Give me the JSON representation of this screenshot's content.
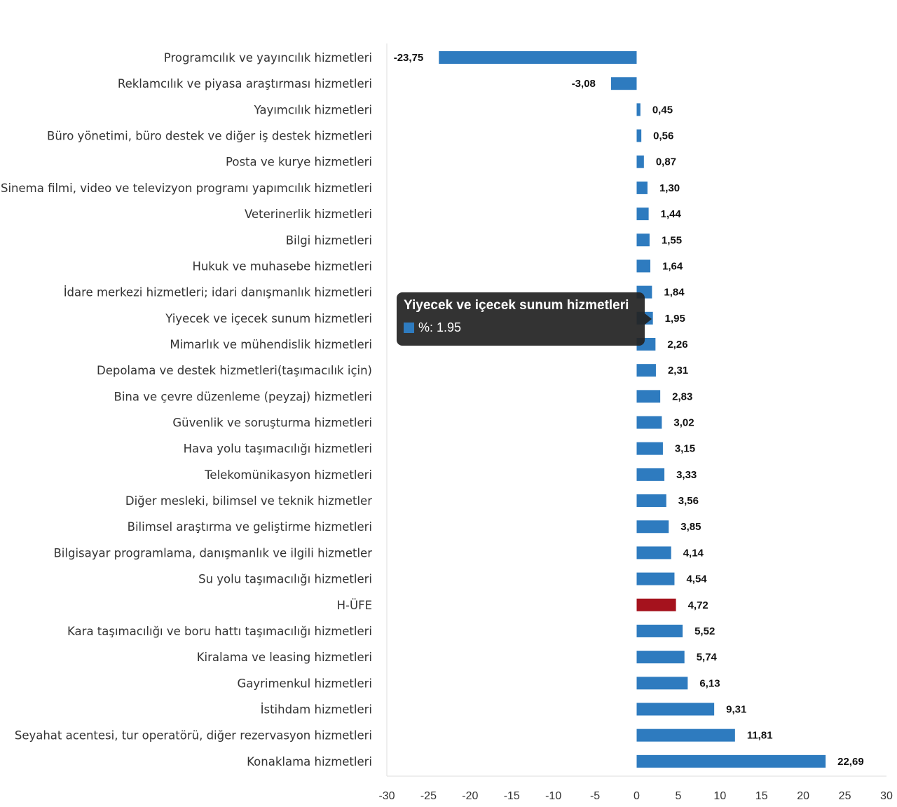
{
  "chart_data": {
    "type": "bar",
    "orientation": "horizontal",
    "categories": [
      "Programcılık ve yayıncılık hizmetleri",
      "Reklamcılık ve piyasa araştırması hizmetleri",
      "Yayımcılık hizmetleri",
      "Büro yönetimi, büro destek ve diğer iş destek hizmetleri",
      "Posta ve kurye hizmetleri",
      "Sinema filmi, video ve televizyon programı yapımcılık hizmetleri",
      "Veterinerlik hizmetleri",
      "Bilgi hizmetleri",
      "Hukuk ve muhasebe hizmetleri",
      "İdare merkezi hizmetleri; idari danışmanlık hizmetleri",
      "Yiyecek ve içecek sunum hizmetleri",
      "Mimarlık ve mühendislik hizmetleri",
      "Depolama ve destek hizmetleri(taşımacılık için)",
      "Bina ve çevre düzenleme (peyzaj) hizmetleri",
      "Güvenlik ve soruşturma hizmetleri",
      "Hava yolu taşımacılığı hizmetleri",
      "Telekomünikasyon hizmetleri",
      "Diğer mesleki, bilimsel ve teknik hizmetler",
      "Bilimsel araştırma ve geliştirme hizmetleri",
      "Bilgisayar programlama, danışmanlık ve ilgili hizmetler",
      "Su yolu taşımacılığı hizmetleri",
      "H-ÜFE",
      "Kara taşımacılığı ve boru hattı taşımacılığı hizmetleri",
      "Kiralama ve leasing hizmetleri",
      "Gayrimenkul hizmetleri",
      "İstihdam hizmetleri",
      "Seyahat acentesi, tur operatörü, diğer rezervasyon hizmetleri",
      "Konaklama hizmetleri"
    ],
    "values": [
      -23.75,
      -3.08,
      0.45,
      0.56,
      0.87,
      1.3,
      1.44,
      1.55,
      1.64,
      1.84,
      1.95,
      2.26,
      2.31,
      2.83,
      3.02,
      3.15,
      3.33,
      3.56,
      3.85,
      4.14,
      4.54,
      4.72,
      5.52,
      5.74,
      6.13,
      9.31,
      11.81,
      22.69
    ],
    "value_labels": [
      "-23,75",
      "-3,08",
      "0,45",
      "0,56",
      "0,87",
      "1,30",
      "1,44",
      "1,55",
      "1,64",
      "1,84",
      "1,95",
      "2,26",
      "2,31",
      "2,83",
      "3,02",
      "3,15",
      "3,33",
      "3,56",
      "3,85",
      "4,14",
      "4,54",
      "4,72",
      "5,52",
      "5,74",
      "6,13",
      "9,31",
      "11,81",
      "22,69"
    ],
    "highlight_category": "H-ÜFE",
    "colors": {
      "bar": "#2e7bbf",
      "highlight": "#a5121d"
    },
    "xlim": [
      -30,
      30
    ],
    "xticks": [
      -30,
      -25,
      -20,
      -15,
      -10,
      -5,
      0,
      5,
      10,
      15,
      20,
      25,
      30
    ],
    "xlabel": "",
    "ylabel": "",
    "title": "",
    "grid": false
  },
  "tooltip": {
    "title": "Yiyecek ve içecek sunum hizmetleri",
    "text": "%: 1.95"
  }
}
